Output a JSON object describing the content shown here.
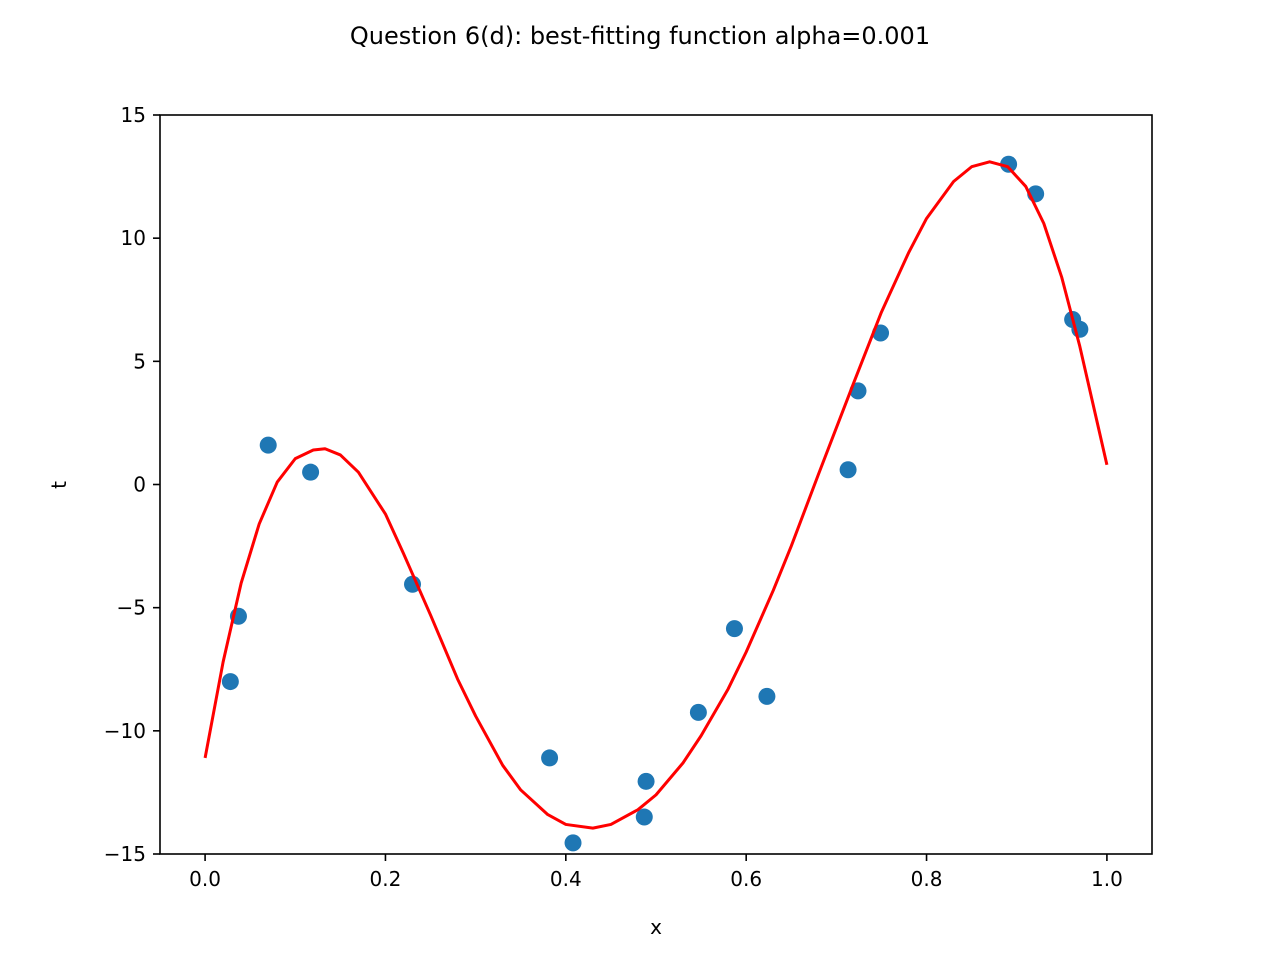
{
  "chart_data": {
    "type": "scatter",
    "title": "Question 6(d): best-fitting function alpha=0.001",
    "xlabel": "x",
    "ylabel": "t",
    "xlim": [
      -0.05,
      1.05
    ],
    "ylim": [
      -15,
      15
    ],
    "x_ticks": [
      0.0,
      0.2,
      0.4,
      0.6,
      0.8,
      1.0
    ],
    "x_tick_labels": [
      "0.0",
      "0.2",
      "0.4",
      "0.6",
      "0.8",
      "1.0"
    ],
    "y_ticks": [
      -15,
      -10,
      -5,
      0,
      5,
      10,
      15
    ],
    "y_tick_labels": [
      "−15",
      "−10",
      "−5",
      "0",
      "5",
      "10",
      "15"
    ],
    "grid": false,
    "series": [
      {
        "kind": "scatter",
        "color": "#1f77b4",
        "points": [
          {
            "x": 0.028,
            "y": -8.0
          },
          {
            "x": 0.037,
            "y": -5.35
          },
          {
            "x": 0.07,
            "y": 1.6
          },
          {
            "x": 0.117,
            "y": 0.5
          },
          {
            "x": 0.23,
            "y": -4.05
          },
          {
            "x": 0.382,
            "y": -11.1
          },
          {
            "x": 0.408,
            "y": -14.55
          },
          {
            "x": 0.487,
            "y": -13.5
          },
          {
            "x": 0.489,
            "y": -12.05
          },
          {
            "x": 0.547,
            "y": -9.25
          },
          {
            "x": 0.587,
            "y": -5.85
          },
          {
            "x": 0.623,
            "y": -8.6
          },
          {
            "x": 0.713,
            "y": 0.6
          },
          {
            "x": 0.724,
            "y": 3.8
          },
          {
            "x": 0.749,
            "y": 6.15
          },
          {
            "x": 0.891,
            "y": 13.0
          },
          {
            "x": 0.921,
            "y": 11.8
          },
          {
            "x": 0.962,
            "y": 6.7
          },
          {
            "x": 0.97,
            "y": 6.3
          }
        ]
      },
      {
        "kind": "line",
        "color": "#ff0000",
        "points": [
          {
            "x": 0.0,
            "y": -11.1
          },
          {
            "x": 0.02,
            "y": -7.2
          },
          {
            "x": 0.04,
            "y": -4.0
          },
          {
            "x": 0.06,
            "y": -1.6
          },
          {
            "x": 0.08,
            "y": 0.1
          },
          {
            "x": 0.1,
            "y": 1.05
          },
          {
            "x": 0.12,
            "y": 1.4
          },
          {
            "x": 0.133,
            "y": 1.45
          },
          {
            "x": 0.15,
            "y": 1.2
          },
          {
            "x": 0.17,
            "y": 0.5
          },
          {
            "x": 0.2,
            "y": -1.2
          },
          {
            "x": 0.22,
            "y": -2.8
          },
          {
            "x": 0.25,
            "y": -5.3
          },
          {
            "x": 0.28,
            "y": -7.9
          },
          {
            "x": 0.3,
            "y": -9.4
          },
          {
            "x": 0.33,
            "y": -11.4
          },
          {
            "x": 0.35,
            "y": -12.4
          },
          {
            "x": 0.38,
            "y": -13.4
          },
          {
            "x": 0.4,
            "y": -13.8
          },
          {
            "x": 0.43,
            "y": -13.95
          },
          {
            "x": 0.45,
            "y": -13.8
          },
          {
            "x": 0.48,
            "y": -13.2
          },
          {
            "x": 0.5,
            "y": -12.6
          },
          {
            "x": 0.53,
            "y": -11.3
          },
          {
            "x": 0.55,
            "y": -10.2
          },
          {
            "x": 0.58,
            "y": -8.3
          },
          {
            "x": 0.6,
            "y": -6.8
          },
          {
            "x": 0.63,
            "y": -4.3
          },
          {
            "x": 0.65,
            "y": -2.5
          },
          {
            "x": 0.68,
            "y": 0.4
          },
          {
            "x": 0.7,
            "y": 2.3
          },
          {
            "x": 0.72,
            "y": 4.2
          },
          {
            "x": 0.75,
            "y": 7.0
          },
          {
            "x": 0.78,
            "y": 9.4
          },
          {
            "x": 0.8,
            "y": 10.8
          },
          {
            "x": 0.83,
            "y": 12.3
          },
          {
            "x": 0.85,
            "y": 12.9
          },
          {
            "x": 0.87,
            "y": 13.1
          },
          {
            "x": 0.89,
            "y": 12.9
          },
          {
            "x": 0.91,
            "y": 12.1
          },
          {
            "x": 0.93,
            "y": 10.6
          },
          {
            "x": 0.95,
            "y": 8.4
          },
          {
            "x": 0.97,
            "y": 5.6
          },
          {
            "x": 0.99,
            "y": 2.4
          },
          {
            "x": 1.0,
            "y": 0.8
          }
        ]
      }
    ]
  }
}
